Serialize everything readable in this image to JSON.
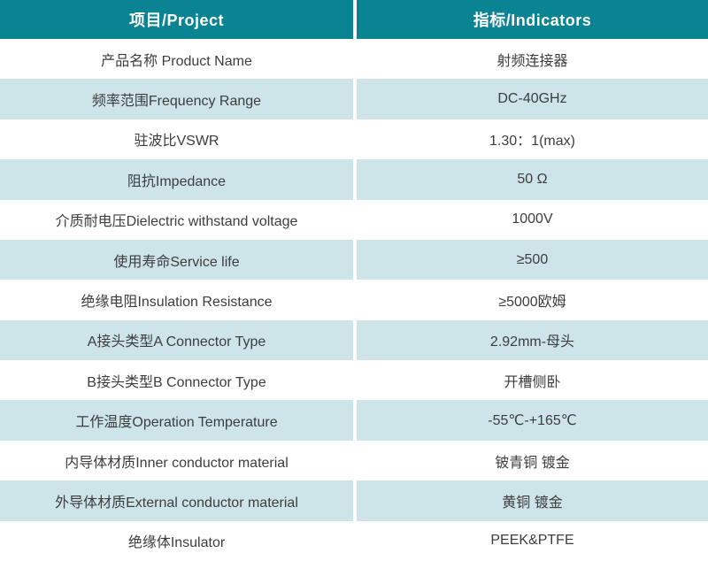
{
  "table": {
    "title": "product-specification-table",
    "colors": {
      "header_bg": "#0a8492",
      "header_text": "#ffffff",
      "row_bg": "#ffffff",
      "row_alt_bg": "#cde4e9",
      "body_text": "#3d3d3d",
      "divider": "#ffffff"
    },
    "headers": [
      {
        "label": "项目/Project"
      },
      {
        "label": "指标/Indicators"
      }
    ],
    "rows": [
      {
        "project": "产品名称 Product Name",
        "indicator": "射频连接器"
      },
      {
        "project": "频率范围Frequency Range",
        "indicator": "DC-40GHz"
      },
      {
        "project": "驻波比VSWR",
        "indicator": "1.30：1(max)"
      },
      {
        "project": "阻抗Impedance",
        "indicator": "50 Ω"
      },
      {
        "project": "介质耐电压Dielectric withstand voltage",
        "indicator": "1000V"
      },
      {
        "project": "使用寿命Service life",
        "indicator": "≥500"
      },
      {
        "project": "绝缘电阻Insulation Resistance",
        "indicator": "≥5000欧姆"
      },
      {
        "project": "A接头类型A Connector Type",
        "indicator": "2.92mm-母头"
      },
      {
        "project": "B接头类型B Connector Type",
        "indicator": "开槽侧卧"
      },
      {
        "project": "工作温度Operation Temperature",
        "indicator": "-55℃-+165℃"
      },
      {
        "project": "内导体材质Inner conductor material",
        "indicator": "铍青铜 镀金"
      },
      {
        "project": "外导体材质External conductor material",
        "indicator": "黄铜 镀金"
      },
      {
        "project": "绝缘体Insulator",
        "indicator": "PEEK&PTFE"
      }
    ]
  }
}
